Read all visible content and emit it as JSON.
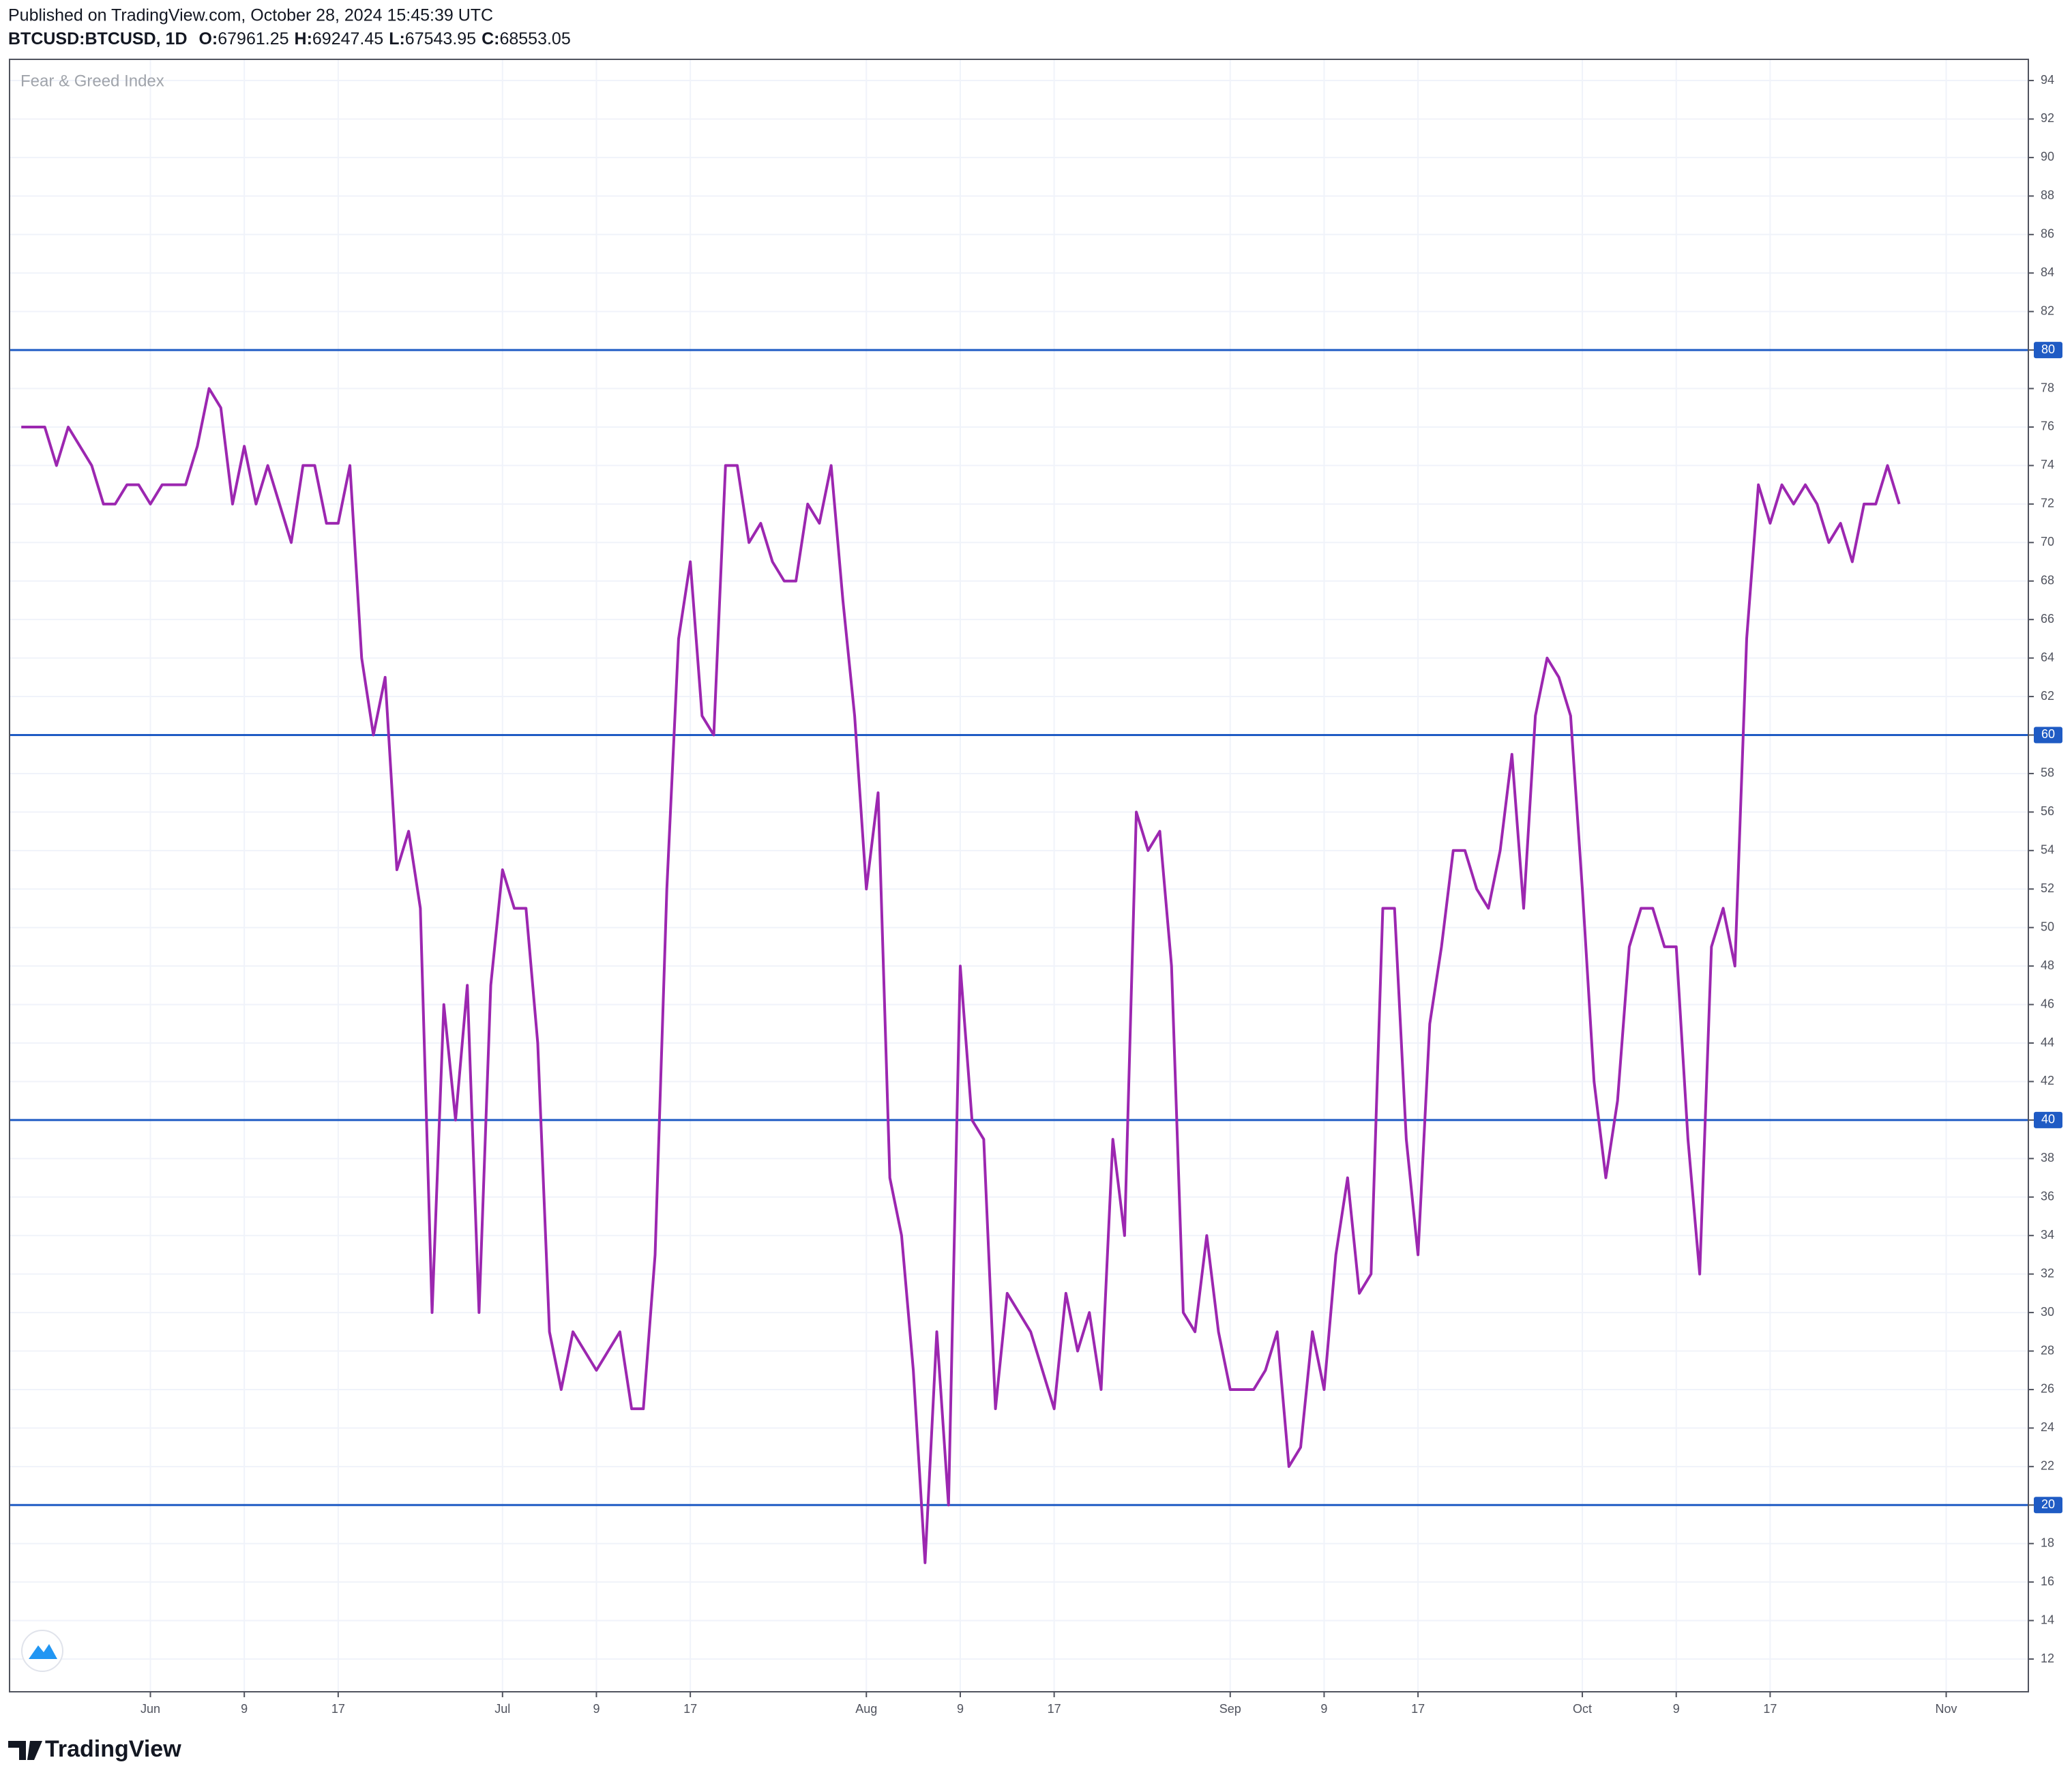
{
  "header": {
    "published": "Published on TradingView.com, October 28, 2024 15:45:39 UTC",
    "symbol": "BTCUSD:BTCUSD, 1D",
    "ohlc": [
      {
        "label": "O:",
        "value": 67961.25
      },
      {
        "label": "H:",
        "value": 69247.45
      },
      {
        "label": "L:",
        "value": 67543.95
      },
      {
        "label": "C:",
        "value": 68553.05
      }
    ]
  },
  "footer": {
    "brand": "TradingView"
  },
  "chart_data": {
    "type": "line",
    "x": [
      "2024-05-21",
      "2024-05-22",
      "2024-05-23",
      "2024-05-24",
      "2024-05-25",
      "2024-05-26",
      "2024-05-27",
      "2024-05-28",
      "2024-05-29",
      "2024-05-30",
      "2024-05-31",
      "2024-06-01",
      "2024-06-02",
      "2024-06-03",
      "2024-06-04",
      "2024-06-05",
      "2024-06-06",
      "2024-06-07",
      "2024-06-08",
      "2024-06-09",
      "2024-06-10",
      "2024-06-11",
      "2024-06-12",
      "2024-06-13",
      "2024-06-14",
      "2024-06-15",
      "2024-06-16",
      "2024-06-17",
      "2024-06-18",
      "2024-06-19",
      "2024-06-20",
      "2024-06-21",
      "2024-06-22",
      "2024-06-23",
      "2024-06-24",
      "2024-06-25",
      "2024-06-26",
      "2024-06-27",
      "2024-06-28",
      "2024-06-29",
      "2024-06-30",
      "2024-07-01",
      "2024-07-02",
      "2024-07-03",
      "2024-07-04",
      "2024-07-05",
      "2024-07-06",
      "2024-07-07",
      "2024-07-08",
      "2024-07-09",
      "2024-07-10",
      "2024-07-11",
      "2024-07-12",
      "2024-07-13",
      "2024-07-14",
      "2024-07-15",
      "2024-07-16",
      "2024-07-17",
      "2024-07-18",
      "2024-07-19",
      "2024-07-20",
      "2024-07-21",
      "2024-07-22",
      "2024-07-23",
      "2024-07-24",
      "2024-07-25",
      "2024-07-26",
      "2024-07-27",
      "2024-07-28",
      "2024-07-29",
      "2024-07-30",
      "2024-07-31",
      "2024-08-01",
      "2024-08-02",
      "2024-08-03",
      "2024-08-04",
      "2024-08-05",
      "2024-08-06",
      "2024-08-07",
      "2024-08-08",
      "2024-08-09",
      "2024-08-10",
      "2024-08-11",
      "2024-08-12",
      "2024-08-13",
      "2024-08-14",
      "2024-08-15",
      "2024-08-16",
      "2024-08-17",
      "2024-08-18",
      "2024-08-19",
      "2024-08-20",
      "2024-08-21",
      "2024-08-22",
      "2024-08-23",
      "2024-08-24",
      "2024-08-25",
      "2024-08-26",
      "2024-08-27",
      "2024-08-28",
      "2024-08-29",
      "2024-08-30",
      "2024-08-31",
      "2024-09-01",
      "2024-09-02",
      "2024-09-03",
      "2024-09-04",
      "2024-09-05",
      "2024-09-06",
      "2024-09-07",
      "2024-09-08",
      "2024-09-09",
      "2024-09-10",
      "2024-09-11",
      "2024-09-12",
      "2024-09-13",
      "2024-09-14",
      "2024-09-15",
      "2024-09-16",
      "2024-09-17",
      "2024-09-18",
      "2024-09-19",
      "2024-09-20",
      "2024-09-21",
      "2024-09-22",
      "2024-09-23",
      "2024-09-24",
      "2024-09-25",
      "2024-09-26",
      "2024-09-27",
      "2024-09-28",
      "2024-09-29",
      "2024-09-30",
      "2024-10-01",
      "2024-10-02",
      "2024-10-03",
      "2024-10-04",
      "2024-10-05",
      "2024-10-06",
      "2024-10-07",
      "2024-10-08",
      "2024-10-09",
      "2024-10-10",
      "2024-10-11",
      "2024-10-12",
      "2024-10-13",
      "2024-10-14",
      "2024-10-15",
      "2024-10-16",
      "2024-10-17",
      "2024-10-18",
      "2024-10-19",
      "2024-10-20",
      "2024-10-21",
      "2024-10-22",
      "2024-10-23",
      "2024-10-24",
      "2024-10-25",
      "2024-10-26",
      "2024-10-27",
      "2024-10-28"
    ],
    "series": [
      {
        "name": "Fear & Greed Index",
        "color": "#9c27b0",
        "values": [
          76,
          76,
          76,
          74,
          76,
          75,
          74,
          72,
          72,
          73,
          73,
          72,
          73,
          73,
          73,
          75,
          78,
          77,
          72,
          75,
          72,
          74,
          72,
          70,
          74,
          74,
          71,
          71,
          74,
          64,
          60,
          63,
          53,
          55,
          51,
          30,
          46,
          40,
          47,
          30,
          47,
          53,
          51,
          51,
          44,
          29,
          26,
          29,
          28,
          27,
          28,
          29,
          25,
          25,
          33,
          52,
          65,
          69,
          61,
          60,
          74,
          74,
          70,
          71,
          69,
          68,
          68,
          72,
          71,
          74,
          67,
          61,
          52,
          57,
          37,
          34,
          27,
          17,
          29,
          20,
          48,
          40,
          39,
          25,
          31,
          30,
          29,
          27,
          25,
          31,
          28,
          30,
          26,
          39,
          34,
          56,
          54,
          55,
          48,
          30,
          29,
          34,
          29,
          26,
          26,
          26,
          27,
          29,
          22,
          23,
          29,
          26,
          33,
          37,
          31,
          32,
          51,
          51,
          39,
          33,
          45,
          49,
          54,
          54,
          52,
          51,
          54,
          59,
          51,
          61,
          64,
          63,
          61,
          52,
          42,
          37,
          41,
          49,
          51,
          51,
          49,
          49,
          39,
          32,
          49,
          51,
          48,
          65,
          73,
          71,
          73,
          72,
          73,
          72,
          70,
          71,
          69,
          72,
          72,
          74,
          72
        ]
      }
    ],
    "hlines": [
      80,
      60,
      40,
      20
    ],
    "hline_color": "#1f5bc4",
    "xlim": [
      "2024-05-20",
      "2024-11-08"
    ],
    "xticks": [
      {
        "value": "2024-06-01",
        "label": "Jun"
      },
      {
        "value": "2024-06-09",
        "label": "9"
      },
      {
        "value": "2024-06-17",
        "label": "17"
      },
      {
        "value": "2024-07-01",
        "label": "Jul"
      },
      {
        "value": "2024-07-09",
        "label": "9"
      },
      {
        "value": "2024-07-17",
        "label": "17"
      },
      {
        "value": "2024-08-01",
        "label": "Aug"
      },
      {
        "value": "2024-08-09",
        "label": "9"
      },
      {
        "value": "2024-08-17",
        "label": "17"
      },
      {
        "value": "2024-09-01",
        "label": "Sep"
      },
      {
        "value": "2024-09-09",
        "label": "9"
      },
      {
        "value": "2024-09-17",
        "label": "17"
      },
      {
        "value": "2024-10-01",
        "label": "Oct"
      },
      {
        "value": "2024-10-09",
        "label": "9"
      },
      {
        "value": "2024-10-17",
        "label": "17"
      },
      {
        "value": "2024-11-01",
        "label": "Nov"
      }
    ],
    "ylim": [
      10.3,
      95.1
    ],
    "yticks": [
      12,
      14,
      16,
      18,
      20,
      22,
      24,
      26,
      28,
      30,
      32,
      34,
      36,
      38,
      40,
      42,
      44,
      46,
      48,
      50,
      52,
      54,
      56,
      58,
      60,
      62,
      64,
      66,
      68,
      70,
      72,
      74,
      76,
      78,
      80,
      82,
      84,
      86,
      88,
      90,
      92,
      94
    ],
    "grid": true
  }
}
